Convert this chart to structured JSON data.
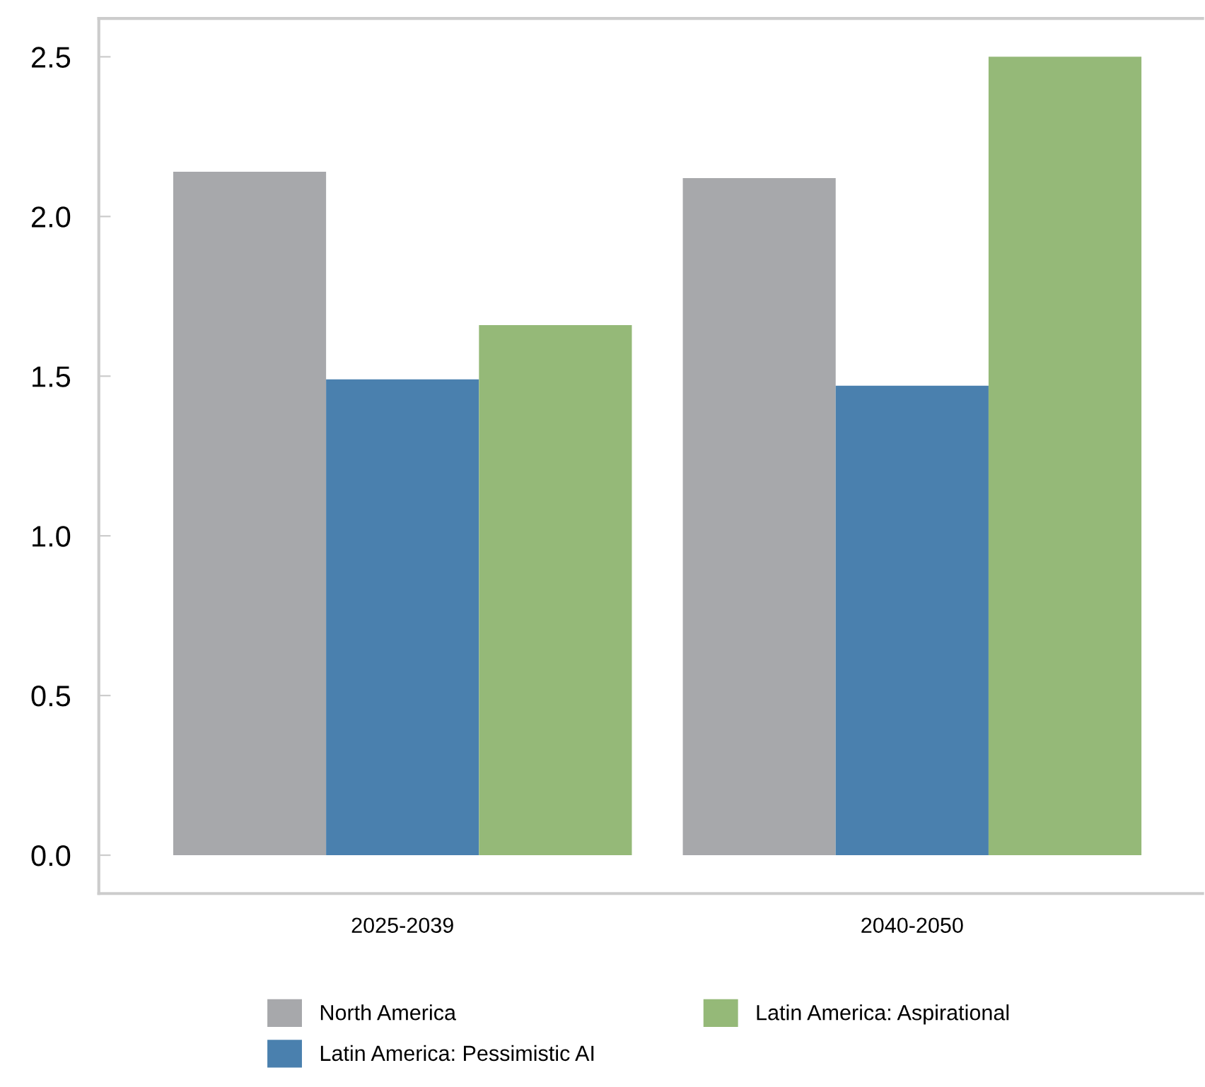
{
  "chart_data": {
    "type": "bar",
    "categories": [
      "2025-2039",
      "2040-2050"
    ],
    "series": [
      {
        "name": "North America",
        "color": "#a7a8ab",
        "values": [
          2.14,
          2.12
        ]
      },
      {
        "name": "Latin America: Pessimistic AI",
        "color": "#4a80ae",
        "values": [
          1.49,
          1.47
        ]
      },
      {
        "name": "Latin America: Aspirational",
        "color": "#95b978",
        "values": [
          1.66,
          2.5
        ]
      }
    ],
    "ylim": [
      -0.12,
      2.62
    ],
    "yticks": [
      {
        "value": 0,
        "label": "0.0"
      },
      {
        "value": 0.5,
        "label": "0.5"
      },
      {
        "value": 1,
        "label": "1.0"
      },
      {
        "value": 1.5,
        "label": "1.5"
      },
      {
        "value": 2,
        "label": "2.0"
      },
      {
        "value": 2.5,
        "label": "2.5"
      }
    ],
    "grid": false,
    "legend": "bottom"
  }
}
